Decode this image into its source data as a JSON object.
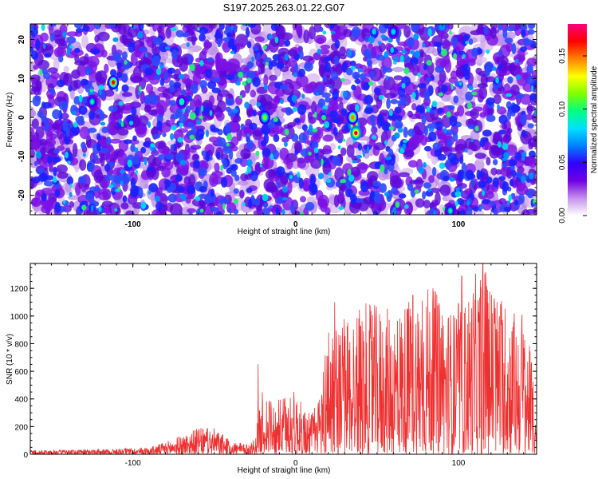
{
  "title": "S197.2025.263.01.22.G07",
  "chart_data": [
    {
      "type": "heatmap",
      "title": "S197.2025.263.01.22.G07",
      "xlabel": "Height of straight line (km)",
      "ylabel": "Frequency (Hz)",
      "xlim": [
        -163,
        148
      ],
      "ylim": [
        -25,
        24
      ],
      "xticks": [
        -100,
        0,
        100
      ],
      "yticks": [
        -20,
        -10,
        0,
        10,
        20
      ],
      "colorbar": {
        "label": "Normalized spectral amplitude",
        "range": [
          0,
          0.18
        ],
        "ticks": [
          0.0,
          0.05,
          0.1,
          0.15
        ],
        "tick_labels": [
          "0.00",
          "0.05",
          "0.10",
          "0.15"
        ],
        "colormap": [
          "#ffffff",
          "#c690ee",
          "#7000e0",
          "#3000ff",
          "#0080ff",
          "#00e0ff",
          "#00ff80",
          "#80ff00",
          "#ffff00",
          "#ff8000",
          "#ff0000",
          "#ff0080"
        ]
      },
      "hotspots": [
        {
          "x": 36,
          "y": -2,
          "value": 0.18
        },
        {
          "x": 37,
          "y": -4,
          "value": 0.17
        },
        {
          "x": 35,
          "y": 0,
          "value": 0.15
        },
        {
          "x": -112,
          "y": 9,
          "value": 0.16
        },
        {
          "x": -19,
          "y": 0,
          "value": 0.12
        },
        {
          "x": -125,
          "y": 4,
          "value": 0.09
        },
        {
          "x": -70,
          "y": 4,
          "value": 0.1
        },
        {
          "x": 60,
          "y": 22,
          "value": 0.08
        },
        {
          "x": 95,
          "y": -24,
          "value": 0.09
        }
      ]
    },
    {
      "type": "line",
      "xlabel": "Height of straight line (km)",
      "ylabel": "SNR (10 * v/v)",
      "xlim": [
        -163,
        148
      ],
      "ylim": [
        0,
        1380
      ],
      "xticks": [
        -100,
        0,
        100
      ],
      "yticks": [
        0,
        200,
        400,
        600,
        800,
        1000,
        1200
      ],
      "color": "#ee3030",
      "envelope": {
        "x": [
          -163,
          -120,
          -90,
          -80,
          -60,
          -50,
          -40,
          -30,
          -25,
          -20,
          -15,
          -10,
          -5,
          0,
          5,
          10,
          15,
          20,
          25,
          30,
          40,
          50,
          60,
          70,
          80,
          90,
          100,
          110,
          115,
          120,
          130,
          140,
          145,
          148
        ],
        "y": [
          30,
          35,
          50,
          90,
          190,
          190,
          100,
          70,
          120,
          500,
          380,
          400,
          440,
          470,
          330,
          300,
          470,
          980,
          900,
          1000,
          1100,
          1080,
          1050,
          1150,
          1250,
          1150,
          1000,
          1300,
          1380,
          1250,
          1100,
          1000,
          700,
          80
        ]
      },
      "peaks": [
        {
          "x": -23,
          "y": 650
        },
        {
          "x": 24,
          "y": 1100
        },
        {
          "x": 72,
          "y": 1150
        },
        {
          "x": 100,
          "y": 1090
        },
        {
          "x": 102,
          "y": 1290
        },
        {
          "x": 115,
          "y": 1380
        },
        {
          "x": 139,
          "y": 1010
        }
      ]
    }
  ]
}
